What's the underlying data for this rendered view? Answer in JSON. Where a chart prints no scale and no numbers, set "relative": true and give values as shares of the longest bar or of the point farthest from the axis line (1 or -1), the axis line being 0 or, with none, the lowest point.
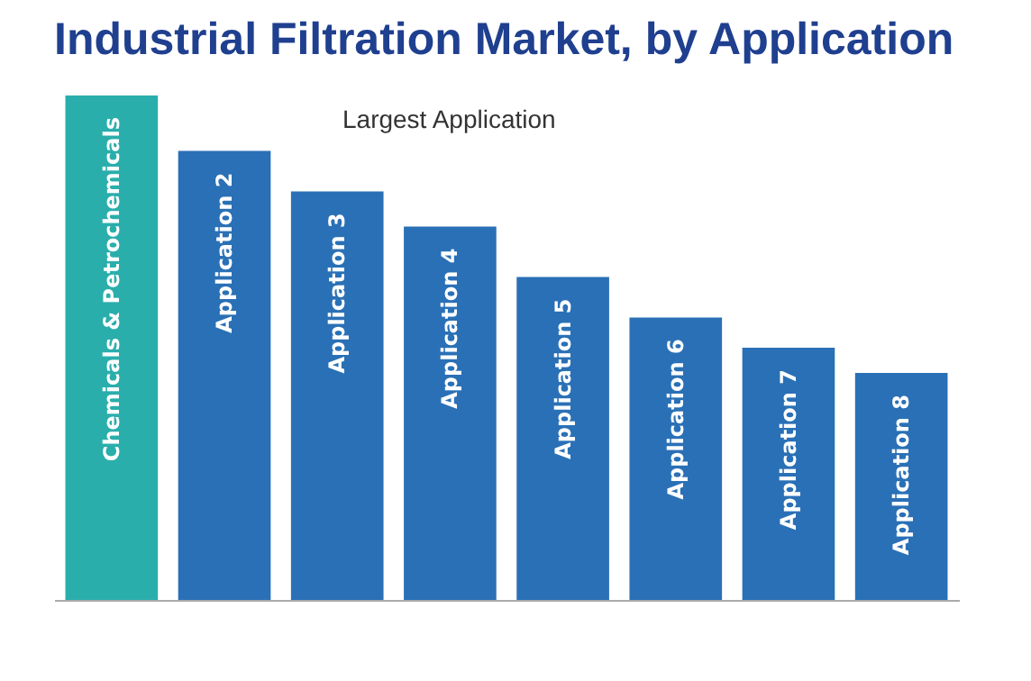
{
  "chart_data": {
    "type": "bar",
    "title": "Industrial Filtration Market, by Application",
    "categories": [
      "Chemicals & Petrochemicals",
      "Application 2",
      "Application 3",
      "Application 4",
      "Application 5",
      "Application 6",
      "Application 7",
      "Application 8"
    ],
    "values": [
      1,
      0.89,
      0.81,
      0.74,
      0.64,
      0.56,
      0.5,
      0.45
    ],
    "colors": [
      "#2aaeac",
      "#2a70b6",
      "#2a70b6",
      "#2a70b6",
      "#2a70b6",
      "#2a70b6",
      "#2a70b6",
      "#2a70b6"
    ],
    "relative": true,
    "tick_labels": false,
    "grid": false,
    "annotations": [
      "Largest Application"
    ]
  }
}
